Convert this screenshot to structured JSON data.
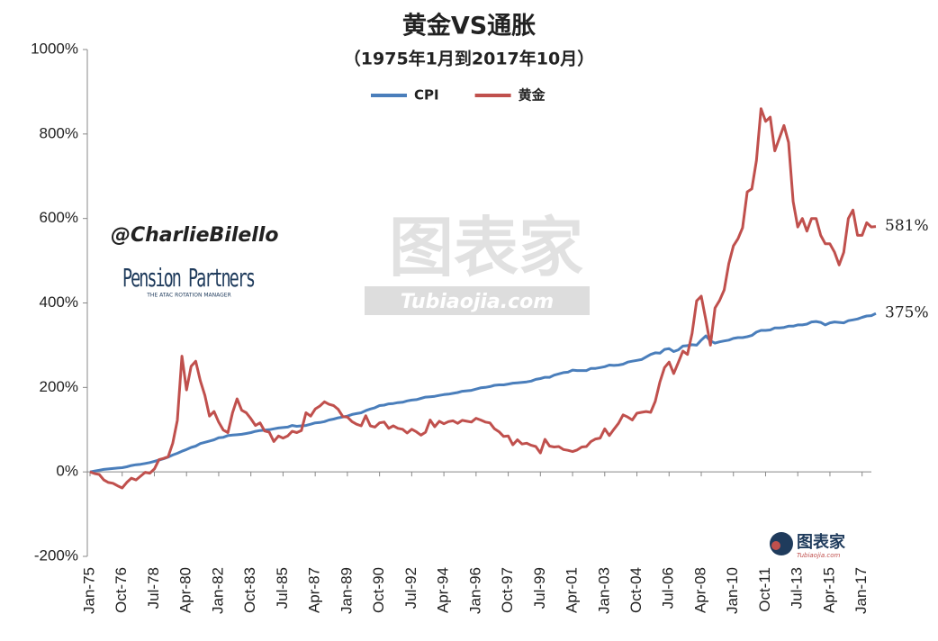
{
  "chart_data": {
    "type": "line",
    "title": "黄金VS通胀",
    "subtitle": "（1975年1月到2017年10月）",
    "annotations": [
      "@CharlieBilello",
      "Pension Partners",
      "THE ATAC ROTATION MANAGER",
      "图表家",
      "Tubiaojia.com"
    ],
    "ylim": [
      -200,
      1000
    ],
    "yticks": [
      {
        "value": -200,
        "label": "-200%"
      },
      {
        "value": 0,
        "label": "0%"
      },
      {
        "value": 200,
        "label": "200%"
      },
      {
        "value": 400,
        "label": "400%"
      },
      {
        "value": 600,
        "label": "600%"
      },
      {
        "value": 800,
        "label": "800%"
      },
      {
        "value": 1000,
        "label": "1000%"
      }
    ],
    "grid": false,
    "legend": "top",
    "categories": [
      "Jan-75",
      null,
      null,
      null,
      null,
      null,
      null,
      "Oct-76",
      null,
      null,
      null,
      null,
      null,
      null,
      "Jul-78",
      null,
      null,
      null,
      null,
      null,
      null,
      "Apr-80",
      null,
      null,
      null,
      null,
      null,
      null,
      "Jan-82",
      null,
      null,
      null,
      null,
      null,
      null,
      "Oct-83",
      null,
      null,
      null,
      null,
      null,
      null,
      "Jul-85",
      null,
      null,
      null,
      null,
      null,
      null,
      "Apr-87",
      null,
      null,
      null,
      null,
      null,
      null,
      "Jan-89",
      null,
      null,
      null,
      null,
      null,
      null,
      "Oct-90",
      null,
      null,
      null,
      null,
      null,
      null,
      "Jul-92",
      null,
      null,
      null,
      null,
      null,
      null,
      "Apr-94",
      null,
      null,
      null,
      null,
      null,
      null,
      "Jan-96",
      null,
      null,
      null,
      null,
      null,
      null,
      "Oct-97",
      null,
      null,
      null,
      null,
      null,
      null,
      "Jul-99",
      null,
      null,
      null,
      null,
      null,
      null,
      "Apr-01",
      null,
      null,
      null,
      null,
      null,
      null,
      "Jan-03",
      null,
      null,
      null,
      null,
      null,
      null,
      "Oct-04",
      null,
      null,
      null,
      null,
      null,
      null,
      "Jul-06",
      null,
      null,
      null,
      null,
      null,
      null,
      "Apr-08",
      null,
      null,
      null,
      null,
      null,
      null,
      "Jan-10",
      null,
      null,
      null,
      null,
      null,
      null,
      "Oct-11",
      null,
      null,
      null,
      null,
      null,
      null,
      "Jul-13",
      null,
      null,
      null,
      null,
      null,
      null,
      "Apr-15",
      null,
      null,
      null,
      null,
      null,
      null,
      "Jan-17",
      null,
      null,
      null
    ],
    "series": [
      {
        "name": "CPI",
        "color": "#4a7ebb",
        "values": [
          0,
          2,
          4,
          6,
          7,
          8,
          9,
          10,
          12,
          15,
          17,
          18,
          20,
          22,
          25,
          28,
          31,
          35,
          40,
          44,
          49,
          53,
          58,
          61,
          67,
          70,
          73,
          76,
          81,
          82,
          86,
          87,
          88,
          89,
          91,
          93,
          96,
          98,
          99,
          100,
          102,
          104,
          105,
          106,
          110,
          108,
          109,
          110,
          113,
          116,
          117,
          119,
          123,
          125,
          128,
          130,
          132,
          136,
          138,
          140,
          145,
          149,
          152,
          157,
          158,
          161,
          162,
          164,
          165,
          168,
          170,
          171,
          174,
          177,
          178,
          179,
          181,
          183,
          184,
          186,
          188,
          191,
          192,
          193,
          196,
          199,
          200,
          202,
          205,
          206,
          206,
          208,
          210,
          211,
          212,
          213,
          215,
          219,
          221,
          224,
          224,
          229,
          232,
          235,
          236,
          241,
          240,
          240,
          240,
          245,
          245,
          247,
          249,
          253,
          252,
          253,
          255,
          260,
          262,
          264,
          266,
          272,
          278,
          282,
          281,
          290,
          292,
          285,
          289,
          298,
          299,
          301,
          300,
          312,
          322,
          310,
          305,
          308,
          310,
          312,
          316,
          318,
          318,
          320,
          323,
          331,
          335,
          335,
          336,
          341,
          341,
          342,
          345,
          345,
          348,
          348,
          350,
          355,
          356,
          354,
          348,
          353,
          355,
          354,
          353,
          358,
          360,
          362,
          366,
          369,
          370,
          375
        ],
        "value_labels": [
          null,
          null,
          null,
          null,
          null,
          null,
          null,
          null,
          null,
          null,
          null,
          null,
          null,
          null,
          null,
          null,
          null,
          null,
          null,
          null,
          null,
          null,
          null,
          null,
          null,
          null,
          null,
          null,
          null,
          null,
          null,
          null,
          null,
          null,
          null,
          null,
          null,
          null,
          null,
          null,
          null,
          null,
          null,
          null,
          null,
          null,
          null,
          null,
          null,
          null,
          null,
          null,
          null,
          null,
          null,
          null,
          null,
          null,
          null,
          null,
          null,
          null,
          null,
          null,
          null,
          null,
          null,
          null,
          null,
          null,
          null,
          null,
          null,
          null,
          null,
          null,
          null,
          null,
          null,
          null,
          null,
          null,
          null,
          null,
          null,
          null,
          null,
          null,
          null,
          null,
          null,
          null,
          null,
          null,
          null,
          null,
          null,
          null,
          null,
          null,
          null,
          null,
          null,
          null,
          null,
          null,
          null,
          null,
          null,
          null,
          null,
          null,
          null,
          null,
          null,
          null,
          null,
          null,
          null,
          null,
          null,
          null,
          null,
          null,
          null,
          null,
          null,
          null,
          null,
          null,
          null,
          null,
          null,
          null,
          null,
          null,
          null,
          null,
          null,
          null,
          null,
          null,
          null,
          null,
          null,
          null,
          null,
          null,
          null,
          null,
          null,
          null,
          null,
          null,
          null,
          null,
          null,
          null,
          null,
          null,
          null,
          null,
          null,
          null,
          null,
          null,
          null,
          null,
          null,
          null,
          null,
          "375%"
        ]
      },
      {
        "name": "黄金",
        "color": "#c0504d",
        "values": [
          0,
          -4,
          -6,
          -19,
          -25,
          -27,
          -33,
          -38,
          -25,
          -15,
          -19,
          -10,
          -1,
          -3,
          7,
          29,
          32,
          36,
          68,
          122,
          274,
          194,
          250,
          262,
          216,
          181,
          132,
          143,
          118,
          99,
          93,
          140,
          173,
          146,
          140,
          126,
          110,
          116,
          97,
          94,
          72,
          85,
          80,
          85,
          96,
          93,
          98,
          140,
          132,
          149,
          156,
          166,
          160,
          157,
          148,
          131,
          130,
          119,
          113,
          109,
          133,
          109,
          106,
          116,
          118,
          103,
          109,
          103,
          101,
          92,
          101,
          95,
          87,
          94,
          123,
          107,
          120,
          114,
          119,
          121,
          115,
          122,
          120,
          118,
          127,
          123,
          118,
          116,
          102,
          95,
          84,
          85,
          64,
          76,
          66,
          68,
          63,
          60,
          45,
          77,
          61,
          59,
          60,
          53,
          51,
          48,
          52,
          59,
          60,
          72,
          78,
          80,
          102,
          86,
          101,
          115,
          135,
          130,
          123,
          139,
          141,
          143,
          141,
          167,
          213,
          247,
          260,
          233,
          259,
          286,
          278,
          328,
          405,
          416,
          360,
          300,
          388,
          406,
          431,
          493,
          535,
          552,
          578,
          663,
          670,
          737,
          860,
          830,
          840,
          760,
          790,
          820,
          780,
          640,
          580,
          600,
          570,
          600,
          600,
          560,
          540,
          540,
          520,
          490,
          520,
          600,
          620,
          560,
          560,
          590,
          580,
          581
        ],
        "value_labels": [
          null,
          null,
          null,
          null,
          null,
          null,
          null,
          null,
          null,
          null,
          null,
          null,
          null,
          null,
          null,
          null,
          null,
          null,
          null,
          null,
          null,
          null,
          null,
          null,
          null,
          null,
          null,
          null,
          null,
          null,
          null,
          null,
          null,
          null,
          null,
          null,
          null,
          null,
          null,
          null,
          null,
          null,
          null,
          null,
          null,
          null,
          null,
          null,
          null,
          null,
          null,
          null,
          null,
          null,
          null,
          null,
          null,
          null,
          null,
          null,
          null,
          null,
          null,
          null,
          null,
          null,
          null,
          null,
          null,
          null,
          null,
          null,
          null,
          null,
          null,
          null,
          null,
          null,
          null,
          null,
          null,
          null,
          null,
          null,
          null,
          null,
          null,
          null,
          null,
          null,
          null,
          null,
          null,
          null,
          null,
          null,
          null,
          null,
          null,
          null,
          null,
          null,
          null,
          null,
          null,
          null,
          null,
          null,
          null,
          null,
          null,
          null,
          null,
          null,
          null,
          null,
          null,
          null,
          null,
          null,
          null,
          null,
          null,
          null,
          null,
          null,
          null,
          null,
          null,
          null,
          null,
          null,
          null,
          null,
          null,
          null,
          null,
          null,
          null,
          null,
          null,
          null,
          null,
          null,
          null,
          null,
          null,
          null,
          null,
          null,
          null,
          null,
          null,
          null,
          null,
          null,
          null,
          null,
          null,
          null,
          null,
          null,
          null,
          null,
          null,
          null,
          null,
          null,
          null,
          null,
          null,
          "581%"
        ]
      }
    ]
  }
}
